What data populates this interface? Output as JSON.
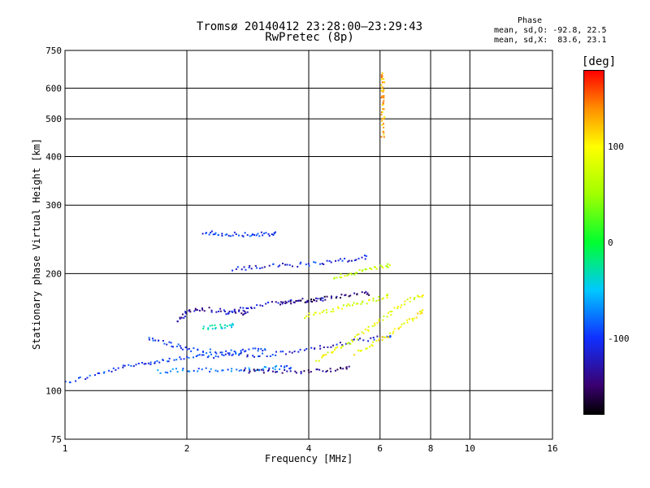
{
  "chart_data": {
    "type": "scatter",
    "title": "Tromsø 20140412 23:28:00–23:29:43",
    "subtitle": "RwPretec (8p)",
    "xlabel": "Frequency [MHz]",
    "ylabel": "Stationary phase Virtual Height [km]",
    "x_scale": "log",
    "y_scale": "log",
    "xlim": [
      1,
      16
    ],
    "ylim": [
      75,
      750
    ],
    "x_ticks": [
      1,
      2,
      4,
      6,
      8,
      10,
      16
    ],
    "y_ticks": [
      75,
      100,
      200,
      300,
      400,
      500,
      600,
      750
    ],
    "grid": true,
    "phase_stats": {
      "heading": "Phase",
      "line_o": "mean, sd,O: -92.8, 22.5",
      "line_x": "mean, sd,X:  83.6, 23.1"
    },
    "colorbar": {
      "unit": "[deg]",
      "range": [
        -180,
        180
      ],
      "ticks": [
        100,
        0,
        -100
      ],
      "colormap": "rainbow (black-purple-blue-cyan-green-yellow-red)"
    },
    "traces": [
      {
        "x": [
          1.0,
          1.2,
          1.4,
          1.6,
          1.8,
          2.1,
          2.4,
          2.7
        ],
        "y": [
          105,
          110,
          115,
          118,
          120,
          122,
          123,
          124
        ],
        "phase": -100
      },
      {
        "x": [
          1.7,
          2.0,
          2.4,
          2.8,
          3.2,
          3.6
        ],
        "y": [
          112,
          113,
          113,
          113,
          114,
          115
        ],
        "phase": -80
      },
      {
        "x": [
          2.8,
          3.2,
          3.8,
          4.4,
          5.0
        ],
        "y": [
          112,
          112,
          112,
          113,
          114
        ],
        "phase": -140
      },
      {
        "x": [
          1.6,
          1.8,
          2.0,
          2.3,
          2.7,
          3.1
        ],
        "y": [
          137,
          132,
          128,
          126,
          126,
          128
        ],
        "phase": -100
      },
      {
        "x": [
          2.8,
          3.3,
          3.9,
          4.6,
          5.5,
          6.4
        ],
        "y": [
          122,
          124,
          127,
          131,
          135,
          138
        ],
        "phase": -110
      },
      {
        "x": [
          1.9,
          2.0,
          2.2,
          2.5,
          2.8
        ],
        "y": [
          150,
          160,
          162,
          160,
          158
        ],
        "phase": -130
      },
      {
        "x": [
          2.5,
          2.8,
          3.2,
          3.7,
          4.3
        ],
        "y": [
          158,
          163,
          168,
          170,
          172
        ],
        "phase": -120
      },
      {
        "x": [
          3.4,
          3.8,
          4.3,
          4.9,
          5.6
        ],
        "y": [
          168,
          170,
          172,
          175,
          178
        ],
        "phase": -150
      },
      {
        "x": [
          2.6,
          3.0,
          3.5,
          4.1,
          4.8,
          5.5
        ],
        "y": [
          205,
          208,
          210,
          212,
          216,
          220
        ],
        "phase": -110
      },
      {
        "x": [
          2.2,
          2.4,
          2.7,
          3.0,
          3.3
        ],
        "y": [
          255,
          253,
          252,
          252,
          253
        ],
        "phase": -100
      },
      {
        "x": [
          4.2,
          4.6,
          5.1,
          5.6,
          6.2,
          6.9,
          7.6
        ],
        "y": [
          120,
          126,
          134,
          144,
          156,
          168,
          176
        ],
        "phase": 90
      },
      {
        "x": [
          5.2,
          5.8,
          6.4,
          7.0,
          7.6
        ],
        "y": [
          125,
          132,
          140,
          150,
          160
        ],
        "phase": 100
      },
      {
        "x": [
          3.9,
          4.4,
          5.0,
          5.6,
          6.3
        ],
        "y": [
          155,
          160,
          165,
          170,
          175
        ],
        "phase": 80
      },
      {
        "x": [
          4.6,
          5.1,
          5.7,
          6.3
        ],
        "y": [
          195,
          200,
          205,
          210
        ],
        "phase": 70
      },
      {
        "x": [
          6.1,
          6.1,
          6.1,
          6.1,
          6.1
        ],
        "y": [
          450,
          500,
          560,
          600,
          650
        ],
        "phase": 130
      },
      {
        "x": [
          2.2,
          2.4,
          2.6
        ],
        "y": [
          145,
          146,
          147
        ],
        "phase": -40
      }
    ]
  }
}
